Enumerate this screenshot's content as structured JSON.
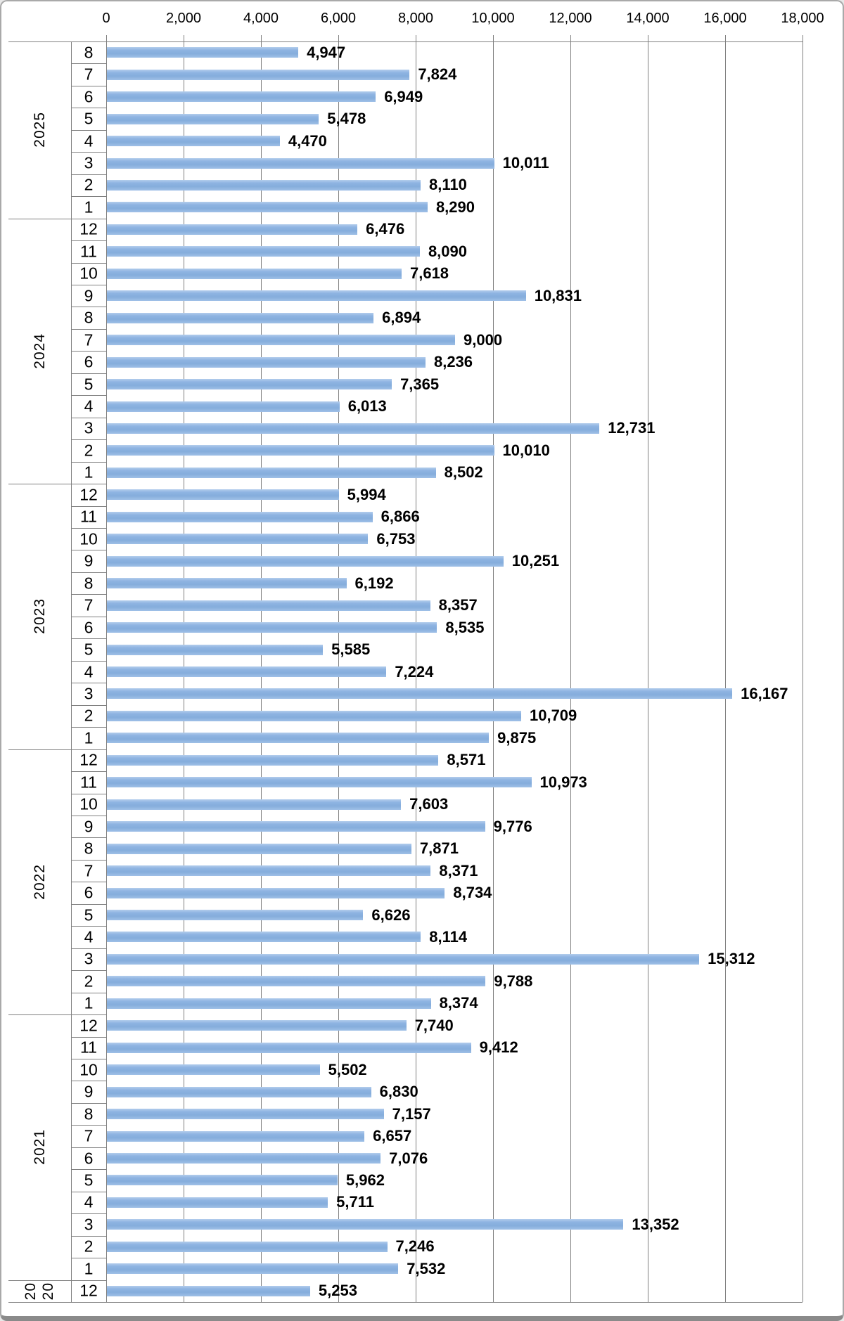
{
  "chart_data": {
    "type": "bar",
    "orientation": "horizontal",
    "title": "",
    "legend": "none",
    "grid": true,
    "bar_color": "#8FB4E2",
    "gridline_color": "#808080",
    "value_axis": {
      "position": "top",
      "min": 0,
      "max": 18000,
      "step": 2000,
      "ticks": [
        "0",
        "2,000",
        "4,000",
        "6,000",
        "8,000",
        "10,000",
        "12,000",
        "14,000",
        "16,000",
        "18,000"
      ]
    },
    "category_axis": {
      "levels": [
        "year",
        "month"
      ]
    },
    "groups": [
      {
        "year": "2025",
        "year_display": "2025",
        "rows": [
          {
            "month": "8",
            "value": 4947,
            "label": "4,947"
          },
          {
            "month": "7",
            "value": 7824,
            "label": "7,824"
          },
          {
            "month": "6",
            "value": 6949,
            "label": "6,949"
          },
          {
            "month": "5",
            "value": 5478,
            "label": "5,478"
          },
          {
            "month": "4",
            "value": 4470,
            "label": "4,470"
          },
          {
            "month": "3",
            "value": 10011,
            "label": "10,011"
          },
          {
            "month": "2",
            "value": 8110,
            "label": "8,110"
          },
          {
            "month": "1",
            "value": 8290,
            "label": "8,290"
          }
        ]
      },
      {
        "year": "2024",
        "year_display": "2024",
        "rows": [
          {
            "month": "12",
            "value": 6476,
            "label": "6,476"
          },
          {
            "month": "11",
            "value": 8090,
            "label": "8,090"
          },
          {
            "month": "10",
            "value": 7618,
            "label": "7,618"
          },
          {
            "month": "9",
            "value": 10831,
            "label": "10,831"
          },
          {
            "month": "8",
            "value": 6894,
            "label": "6,894"
          },
          {
            "month": "7",
            "value": 9000,
            "label": "9,000"
          },
          {
            "month": "6",
            "value": 8236,
            "label": "8,236"
          },
          {
            "month": "5",
            "value": 7365,
            "label": "7,365"
          },
          {
            "month": "4",
            "value": 6013,
            "label": "6,013"
          },
          {
            "month": "3",
            "value": 12731,
            "label": "12,731"
          },
          {
            "month": "2",
            "value": 10010,
            "label": "10,010"
          },
          {
            "month": "1",
            "value": 8502,
            "label": "8,502"
          }
        ]
      },
      {
        "year": "2023",
        "year_display": "2023",
        "rows": [
          {
            "month": "12",
            "value": 5994,
            "label": "5,994"
          },
          {
            "month": "11",
            "value": 6866,
            "label": "6,866"
          },
          {
            "month": "10",
            "value": 6753,
            "label": "6,753"
          },
          {
            "month": "9",
            "value": 10251,
            "label": "10,251"
          },
          {
            "month": "8",
            "value": 6192,
            "label": "6,192"
          },
          {
            "month": "7",
            "value": 8357,
            "label": "8,357"
          },
          {
            "month": "6",
            "value": 8535,
            "label": "8,535"
          },
          {
            "month": "5",
            "value": 5585,
            "label": "5,585"
          },
          {
            "month": "4",
            "value": 7224,
            "label": "7,224"
          },
          {
            "month": "3",
            "value": 16167,
            "label": "16,167"
          },
          {
            "month": "2",
            "value": 10709,
            "label": "10,709"
          },
          {
            "month": "1",
            "value": 9875,
            "label": "9,875"
          }
        ]
      },
      {
        "year": "2022",
        "year_display": "2022",
        "rows": [
          {
            "month": "12",
            "value": 8571,
            "label": "8,571"
          },
          {
            "month": "11",
            "value": 10973,
            "label": "10,973"
          },
          {
            "month": "10",
            "value": 7603,
            "label": "7,603"
          },
          {
            "month": "9",
            "value": 9776,
            "label": "9,776"
          },
          {
            "month": "8",
            "value": 7871,
            "label": "7,871"
          },
          {
            "month": "7",
            "value": 8371,
            "label": "8,371"
          },
          {
            "month": "6",
            "value": 8734,
            "label": "8,734"
          },
          {
            "month": "5",
            "value": 6626,
            "label": "6,626"
          },
          {
            "month": "4",
            "value": 8114,
            "label": "8,114"
          },
          {
            "month": "3",
            "value": 15312,
            "label": "15,312"
          },
          {
            "month": "2",
            "value": 9788,
            "label": "9,788"
          },
          {
            "month": "1",
            "value": 8374,
            "label": "8,374"
          }
        ]
      },
      {
        "year": "2021",
        "year_display": "2021",
        "rows": [
          {
            "month": "12",
            "value": 7740,
            "label": "7,740"
          },
          {
            "month": "11",
            "value": 9412,
            "label": "9,412"
          },
          {
            "month": "10",
            "value": 5502,
            "label": "5,502"
          },
          {
            "month": "9",
            "value": 6830,
            "label": "6,830"
          },
          {
            "month": "8",
            "value": 7157,
            "label": "7,157"
          },
          {
            "month": "7",
            "value": 6657,
            "label": "6,657"
          },
          {
            "month": "6",
            "value": 7076,
            "label": "7,076"
          },
          {
            "month": "5",
            "value": 5962,
            "label": "5,962"
          },
          {
            "month": "4",
            "value": 5711,
            "label": "5,711"
          },
          {
            "month": "3",
            "value": 13352,
            "label": "13,352"
          },
          {
            "month": "2",
            "value": 7246,
            "label": "7,246"
          },
          {
            "month": "1",
            "value": 7532,
            "label": "7,532"
          }
        ]
      },
      {
        "year": "2020",
        "year_display": "20 20",
        "rows": [
          {
            "month": "12",
            "value": 5253,
            "label": "5,253"
          }
        ]
      }
    ]
  }
}
